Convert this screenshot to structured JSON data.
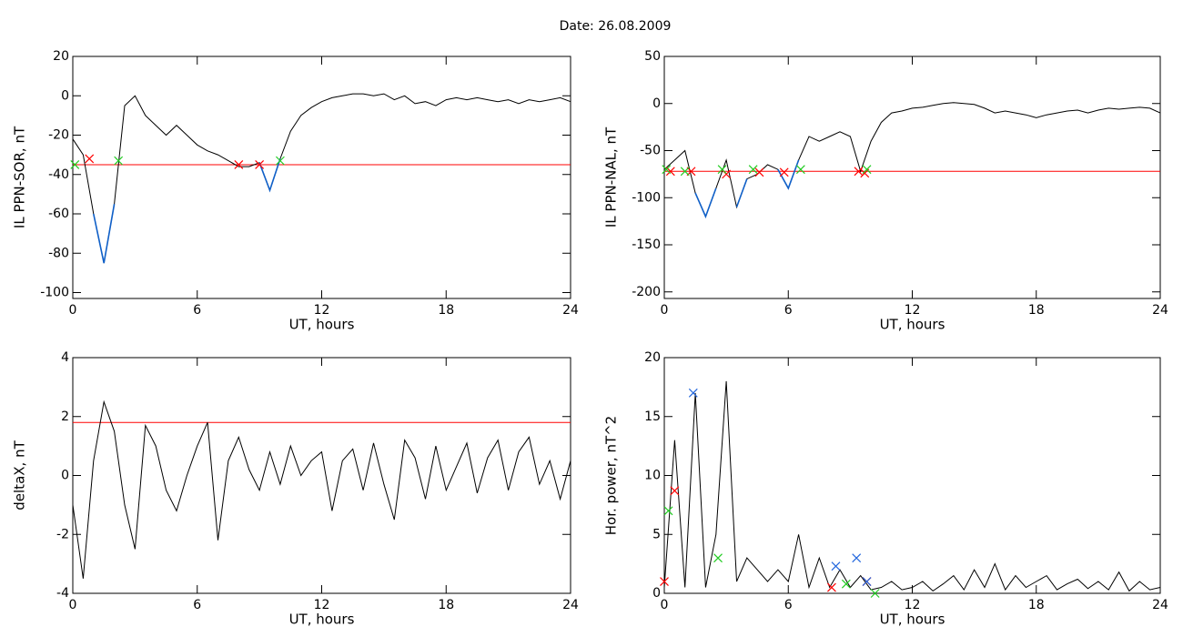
{
  "title": "Date:  26.08.2009",
  "chart_data": [
    {
      "type": "line",
      "xlabel": "UT, hours",
      "ylabel": "IL PPN-SOR, nT",
      "xlim": [
        0,
        24
      ],
      "xticks": [
        0,
        6,
        12,
        18,
        24
      ],
      "ylim": [
        -103,
        20
      ],
      "yticks": [
        20,
        0,
        -20,
        -40,
        -60,
        -80,
        -100
      ],
      "x": [
        0,
        0.5,
        1,
        1.5,
        2,
        2.5,
        3,
        3.5,
        4,
        4.5,
        5,
        5.5,
        6,
        6.5,
        7,
        7.5,
        8,
        8.5,
        9,
        9.5,
        10,
        10.5,
        11,
        11.5,
        12,
        12.5,
        13,
        13.5,
        14,
        14.5,
        15,
        15.5,
        16,
        16.5,
        17,
        17.5,
        18,
        18.5,
        19,
        19.5,
        20,
        20.5,
        21,
        21.5,
        22,
        22.5,
        23,
        23.5,
        24
      ],
      "series": [
        {
          "color": "#000000",
          "values": [
            -22,
            -30,
            -60,
            -85,
            -55,
            -5,
            0,
            -10,
            -15,
            -20,
            -15,
            -20,
            -25,
            -28,
            -30,
            -33,
            -36,
            -36,
            -34,
            -48,
            -32,
            -18,
            -10,
            -6,
            -3,
            -1,
            0,
            1,
            1,
            0,
            1,
            -2,
            0,
            -4,
            -3,
            -5,
            -2,
            -1,
            -2,
            -1,
            -2,
            -3,
            -2,
            -4,
            -2,
            -3,
            -2,
            -1,
            -3
          ]
        },
        {
          "color": "#1060c8",
          "values": [
            null,
            null,
            -60,
            -85,
            -55,
            null,
            null,
            null,
            null,
            null,
            null,
            null,
            null,
            null,
            null,
            null,
            null,
            null,
            -34,
            -48,
            -32,
            null,
            null,
            null,
            null,
            null,
            null,
            null,
            null,
            null,
            null,
            null,
            null,
            null,
            null,
            null,
            null,
            null,
            null,
            null,
            null,
            null,
            null,
            null,
            null,
            null,
            null,
            null,
            null
          ]
        }
      ],
      "hline": {
        "value": -35,
        "color": "#ff0000"
      },
      "markers": [
        {
          "color": "#ff0000",
          "x": [
            0.8,
            8,
            9
          ],
          "y": [
            -32,
            -35,
            -35
          ]
        },
        {
          "color": "#22cc22",
          "x": [
            0.1,
            2.2,
            10
          ],
          "y": [
            -35,
            -33,
            -33
          ]
        }
      ]
    },
    {
      "type": "line",
      "xlabel": "UT, hours",
      "ylabel": "IL PPN-NAL, nT",
      "xlim": [
        0,
        24
      ],
      "xticks": [
        0,
        6,
        12,
        18,
        24
      ],
      "ylim": [
        -207,
        50
      ],
      "yticks": [
        50,
        0,
        -50,
        -100,
        -150,
        -200
      ],
      "x": [
        0,
        0.5,
        1,
        1.5,
        2,
        2.5,
        3,
        3.5,
        4,
        4.5,
        5,
        5.5,
        6,
        6.5,
        7,
        7.5,
        8,
        8.5,
        9,
        9.5,
        10,
        10.5,
        11,
        11.5,
        12,
        12.5,
        13,
        13.5,
        14,
        14.5,
        15,
        15.5,
        16,
        16.5,
        17,
        17.5,
        18,
        18.5,
        19,
        19.5,
        20,
        20.5,
        21,
        21.5,
        22,
        22.5,
        23,
        23.5,
        24
      ],
      "series": [
        {
          "color": "#000000",
          "values": [
            -70,
            -60,
            -50,
            -95,
            -120,
            -90,
            -60,
            -110,
            -80,
            -75,
            -65,
            -70,
            -90,
            -60,
            -35,
            -40,
            -35,
            -30,
            -35,
            -72,
            -40,
            -20,
            -10,
            -8,
            -5,
            -4,
            -2,
            0,
            1,
            0,
            -1,
            -5,
            -10,
            -8,
            -10,
            -12,
            -15,
            -12,
            -10,
            -8,
            -7,
            -10,
            -7,
            -5,
            -6,
            -5,
            -4,
            -5,
            -10
          ]
        },
        {
          "color": "#1060c8",
          "values": [
            null,
            null,
            null,
            -95,
            -120,
            -90,
            null,
            -110,
            -80,
            null,
            null,
            -70,
            -90,
            -60,
            null,
            null,
            null,
            null,
            null,
            null,
            null,
            null,
            null,
            null,
            null,
            null,
            null,
            null,
            null,
            null,
            null,
            null,
            null,
            null,
            null,
            null,
            null,
            null,
            null,
            null,
            null,
            null,
            null,
            null,
            null,
            null,
            null,
            null,
            null
          ]
        }
      ],
      "hline": {
        "value": -72,
        "color": "#ff0000"
      },
      "markers": [
        {
          "color": "#ff0000",
          "x": [
            0.3,
            1.3,
            3.0,
            4.6,
            5.8,
            9.4,
            9.7
          ],
          "y": [
            -72,
            -72,
            -75,
            -73,
            -73,
            -72,
            -74
          ]
        },
        {
          "color": "#22cc22",
          "x": [
            0.1,
            1.0,
            2.8,
            4.3,
            6.6,
            9.8
          ],
          "y": [
            -70,
            -72,
            -70,
            -70,
            -70,
            -70
          ]
        }
      ]
    },
    {
      "type": "line",
      "xlabel": "UT, hours",
      "ylabel": "deltaX, nT",
      "xlim": [
        0,
        24
      ],
      "xticks": [
        0,
        6,
        12,
        18,
        24
      ],
      "ylim": [
        -4,
        4
      ],
      "yticks": [
        4,
        2,
        0,
        -2,
        -4
      ],
      "x": [
        0,
        0.5,
        1,
        1.5,
        2,
        2.5,
        3,
        3.5,
        4,
        4.5,
        5,
        5.5,
        6,
        6.5,
        7,
        7.5,
        8,
        8.5,
        9,
        9.5,
        10,
        10.5,
        11,
        11.5,
        12,
        12.5,
        13,
        13.5,
        14,
        14.5,
        15,
        15.5,
        16,
        16.5,
        17,
        17.5,
        18,
        18.5,
        19,
        19.5,
        20,
        20.5,
        21,
        21.5,
        22,
        22.5,
        23,
        23.5,
        24
      ],
      "series": [
        {
          "color": "#000000",
          "values": [
            -1,
            -3.5,
            0.5,
            2.5,
            1.5,
            -1,
            -2.5,
            1.7,
            1,
            -0.5,
            -1.2,
            0,
            1,
            1.8,
            -2.2,
            0.5,
            1.3,
            0.2,
            -0.5,
            0.8,
            -0.3,
            1,
            0,
            0.5,
            0.8,
            -1.2,
            0.5,
            0.9,
            -0.5,
            1.1,
            -0.3,
            -1.5,
            1.2,
            0.6,
            -0.8,
            1,
            -0.5,
            0.3,
            1.1,
            -0.6,
            0.6,
            1.2,
            -0.5,
            0.8,
            1.3,
            -0.3,
            0.5,
            -0.8,
            0.5
          ]
        }
      ],
      "hline": {
        "value": 1.8,
        "color": "#ff0000"
      },
      "markers": []
    },
    {
      "type": "line",
      "xlabel": "UT, hours",
      "ylabel": "Hor. power, nT^2",
      "xlim": [
        0,
        24
      ],
      "xticks": [
        0,
        6,
        12,
        18,
        24
      ],
      "ylim": [
        0,
        20
      ],
      "yticks": [
        0,
        5,
        10,
        15,
        20
      ],
      "x": [
        0,
        0.5,
        1,
        1.5,
        2,
        2.5,
        3,
        3.5,
        4,
        4.5,
        5,
        5.5,
        6,
        6.5,
        7,
        7.5,
        8,
        8.5,
        9,
        9.5,
        10,
        10.5,
        11,
        11.5,
        12,
        12.5,
        13,
        13.5,
        14,
        14.5,
        15,
        15.5,
        16,
        16.5,
        17,
        17.5,
        18,
        18.5,
        19,
        19.5,
        20,
        20.5,
        21,
        21.5,
        22,
        22.5,
        23,
        23.5,
        24
      ],
      "series": [
        {
          "color": "#000000",
          "values": [
            0.5,
            13,
            0.5,
            17,
            0.5,
            5,
            18,
            1,
            3,
            2,
            1,
            2,
            1,
            5,
            0.5,
            3,
            0.5,
            2,
            0.5,
            1.5,
            0.3,
            0.5,
            1,
            0.3,
            0.5,
            1,
            0.2,
            0.8,
            1.5,
            0.3,
            2,
            0.5,
            2.5,
            0.3,
            1.5,
            0.5,
            1,
            1.5,
            0.3,
            0.8,
            1.2,
            0.4,
            1,
            0.3,
            1.8,
            0.2,
            1,
            0.3,
            0.5
          ]
        }
      ],
      "markers": [
        {
          "color": "#ff0000",
          "x": [
            0,
            0.5,
            8.1,
            9.8
          ],
          "y": [
            1,
            8.7,
            0.5,
            1
          ]
        },
        {
          "color": "#22cc22",
          "x": [
            0.2,
            2.6,
            8.8,
            10.2
          ],
          "y": [
            7,
            3,
            0.8,
            0
          ]
        },
        {
          "color": "#2266dd",
          "x": [
            1.4,
            8.3,
            9.3,
            9.8
          ],
          "y": [
            17,
            2.3,
            3,
            1
          ]
        }
      ]
    }
  ]
}
